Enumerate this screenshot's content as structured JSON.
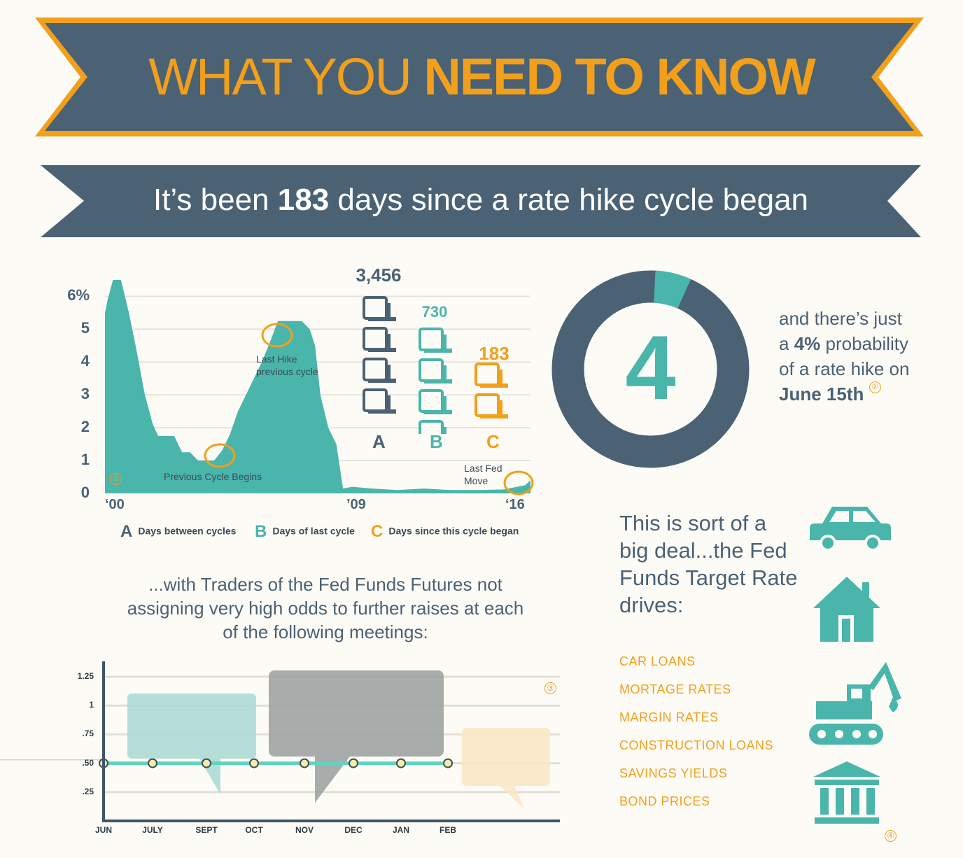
{
  "header": {
    "title_light": "WHAT YOU ",
    "title_bold": "NEED TO KNOW",
    "subtitle_pre": "It’s been ",
    "subtitle_num": "183",
    "subtitle_post": " days since a rate hike cycle began"
  },
  "colors": {
    "navy": "#4b6274",
    "teal": "#4ab5ab",
    "orange": "#f29f1c",
    "gray": "#9ea3a2",
    "background": "#fdfbf6"
  },
  "chart_data": [
    {
      "type": "area",
      "y_ticks": [
        "6%",
        "5",
        "4",
        "3",
        "2",
        "1",
        "0"
      ],
      "x_ticks": [
        "‘00",
        "’09",
        "‘16"
      ],
      "ylim": [
        0,
        6.5
      ],
      "xlim": [
        2000,
        2016
      ],
      "x": [
        2000.0,
        2000.1,
        2000.3,
        2000.6,
        2000.9,
        2001.2,
        2001.5,
        2001.8,
        2002.0,
        2002.3,
        2002.6,
        2002.9,
        2003.2,
        2003.5,
        2003.8,
        2004.1,
        2004.4,
        2004.7,
        2005.0,
        2005.3,
        2005.6,
        2005.9,
        2006.2,
        2006.5,
        2006.8,
        2007.1,
        2007.4,
        2007.7,
        2007.9,
        2008.1,
        2008.4,
        2008.7,
        2008.95,
        2009.3,
        2010,
        2011,
        2012,
        2013,
        2014,
        2015,
        2015.8,
        2016.0
      ],
      "y": [
        5.5,
        5.9,
        6.5,
        6.5,
        5.5,
        4.3,
        3.0,
        2.1,
        1.75,
        1.75,
        1.75,
        1.25,
        1.25,
        1.0,
        1.0,
        1.0,
        1.3,
        1.8,
        2.5,
        3.0,
        3.5,
        4.0,
        4.6,
        5.25,
        5.25,
        5.25,
        5.25,
        5.0,
        4.5,
        3.0,
        2.0,
        1.5,
        0.15,
        0.2,
        0.15,
        0.1,
        0.15,
        0.1,
        0.1,
        0.12,
        0.25,
        0.4
      ],
      "annotations": [
        {
          "label": "Last Hike previous cycle"
        },
        {
          "label": "Previous Cycle Begins"
        },
        {
          "label": "Last Fed Move"
        }
      ],
      "ref": "①"
    },
    {
      "type": "bar",
      "categories": [
        "A",
        "B",
        "C"
      ],
      "values": [
        3456,
        730,
        183
      ],
      "value_labels": [
        "3,456",
        "730",
        "183"
      ],
      "icons": [
        4,
        4,
        2
      ],
      "legend": [
        {
          "letter": "A",
          "label": "Days between cycles"
        },
        {
          "letter": "B",
          "label": "Days of last cycle"
        },
        {
          "letter": "C",
          "label": "Days since this cycle began"
        }
      ]
    },
    {
      "type": "pie",
      "center_label": "4",
      "values": [
        4,
        96
      ],
      "colors": [
        "#4ab5ab",
        "#4b6274"
      ]
    },
    {
      "type": "line",
      "categories": [
        "JUN",
        "JULY",
        "SEPT",
        "OCT",
        "NOV",
        "DEC",
        "JAN",
        "FEB"
      ],
      "values": [
        0.5,
        0.5,
        0.5,
        0.5,
        0.5,
        0.5,
        0.5,
        0.5
      ],
      "y_ticks": [
        "1.25",
        "1",
        ".75",
        ".50",
        ".25"
      ],
      "ylim": [
        0,
        1.25
      ],
      "ref": "③"
    }
  ],
  "probability": {
    "line1": "and there’s just",
    "line2_pre": "a ",
    "line2_bold": "4%",
    "line2_post": " probability",
    "line3": "of a rate hike on",
    "date": "June 15th",
    "ref": "②"
  },
  "traders_text": "...with Traders of the Fed Funds Futures not assigning very high odds to further raises at each of the following meetings:",
  "big_deal_text": "This is sort of a big deal...the Fed Funds Target Rate drives:",
  "drives": [
    "CAR LOANS",
    "MORTAGE RATES",
    "MARGIN RATES",
    "CONSTRUCTION LOANS",
    "SAVINGS YIELDS",
    "BOND PRICES"
  ],
  "drives_icons": [
    "car-icon",
    "house-icon",
    "excavator-icon",
    "bank-icon"
  ],
  "drives_ref": "④"
}
